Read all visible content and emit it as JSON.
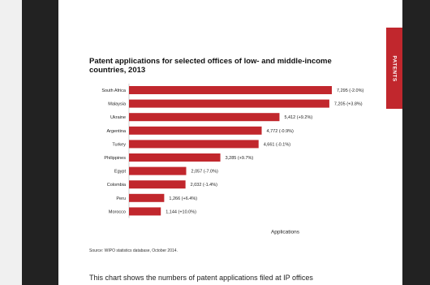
{
  "side_tab": {
    "label": "PATENTS"
  },
  "chart_data": {
    "type": "bar",
    "orientation": "horizontal",
    "title": "Patent applications for selected offices of low- and middle-income countries, 2013",
    "xlabel": "Applications",
    "categories": [
      "South Africa",
      "Malaysia",
      "Ukraine",
      "Argentina",
      "Turkey",
      "Philippines",
      "Egypt",
      "Colombia",
      "Peru",
      "Morocco"
    ],
    "values": [
      7295,
      7205,
      5412,
      4772,
      4661,
      3285,
      2057,
      2032,
      1266,
      1144
    ],
    "data_labels": [
      "7,295 (-2.0%)",
      "7,205 (+3.8%)",
      "5,412 (+9.2%)",
      "4,772 (-0.9%)",
      "4,661 (-0.1%)",
      "3,285 (+9.7%)",
      "2,057 (-7.0%)",
      "2,032 (-1.4%)",
      "1,266 (+6.4%)",
      "1,144 (+10.0%)"
    ],
    "xlim": [
      0,
      7295
    ],
    "bar_color": "#c1272d",
    "grid": false,
    "legend": "none"
  },
  "source": "Source: WIPO statistics database, October 2014.",
  "body_text": "This chart shows the numbers of patent applications filed at IP offices"
}
